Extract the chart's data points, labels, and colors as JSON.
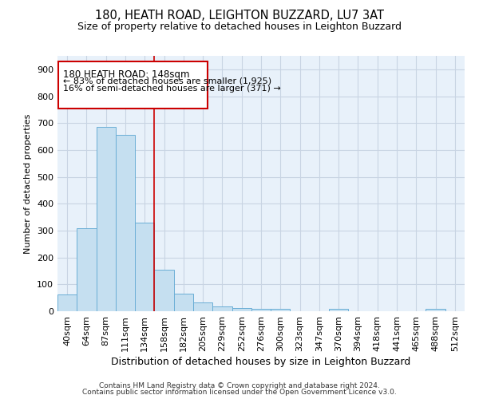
{
  "title": "180, HEATH ROAD, LEIGHTON BUZZARD, LU7 3AT",
  "subtitle": "Size of property relative to detached houses in Leighton Buzzard",
  "xlabel": "Distribution of detached houses by size in Leighton Buzzard",
  "ylabel": "Number of detached properties",
  "footer_line1": "Contains HM Land Registry data © Crown copyright and database right 2024.",
  "footer_line2": "Contains public sector information licensed under the Open Government Licence v3.0.",
  "categories": [
    "40sqm",
    "64sqm",
    "87sqm",
    "111sqm",
    "134sqm",
    "158sqm",
    "182sqm",
    "205sqm",
    "229sqm",
    "252sqm",
    "276sqm",
    "300sqm",
    "323sqm",
    "347sqm",
    "370sqm",
    "394sqm",
    "418sqm",
    "441sqm",
    "465sqm",
    "488sqm",
    "512sqm"
  ],
  "values": [
    63,
    310,
    685,
    655,
    330,
    155,
    65,
    33,
    18,
    12,
    10,
    8,
    0,
    0,
    8,
    0,
    0,
    0,
    0,
    8,
    0
  ],
  "bar_color": "#c5dff0",
  "bar_edge_color": "#6aaed6",
  "grid_color": "#c8d4e3",
  "background_color": "#e8f1fa",
  "annotation_line1": "180 HEATH ROAD: 148sqm",
  "annotation_line2": "← 83% of detached houses are smaller (1,925)",
  "annotation_line3": "16% of semi-detached houses are larger (371) →",
  "annotation_box_color": "#ffffff",
  "annotation_box_edge_color": "#cc0000",
  "red_line_x": 4.5,
  "ylim": [
    0,
    950
  ],
  "yticks": [
    0,
    100,
    200,
    300,
    400,
    500,
    600,
    700,
    800,
    900
  ],
  "title_fontsize": 10.5,
  "subtitle_fontsize": 9,
  "tick_fontsize": 8,
  "ylabel_fontsize": 8,
  "xlabel_fontsize": 9,
  "footer_fontsize": 6.5
}
